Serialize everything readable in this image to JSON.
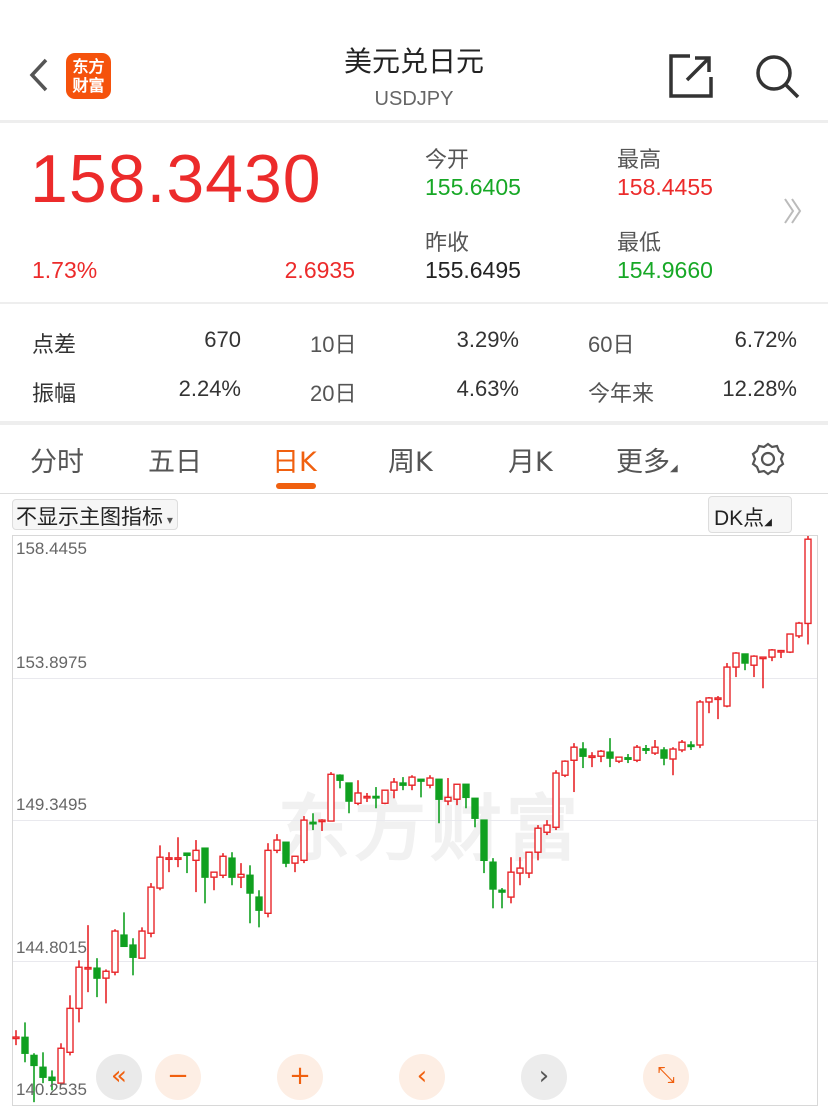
{
  "header": {
    "title": "美元兑日元",
    "subtitle": "USDJPY",
    "logo_text": "东方财富",
    "icons": [
      "back-icon",
      "share-icon",
      "search-icon"
    ]
  },
  "quote": {
    "price": "158.3430",
    "change_pct": "1.73%",
    "change": "2.6935",
    "open_label": "今开",
    "open": "155.6405",
    "high_label": "最高",
    "high": "158.4455",
    "prev_close_label": "昨收",
    "prev_close": "155.6495",
    "low_label": "最低",
    "low": "154.9660"
  },
  "stats": [
    {
      "label": "点差",
      "value": "670"
    },
    {
      "label": "10日",
      "value": "3.29%"
    },
    {
      "label": "60日",
      "value": "6.72%"
    },
    {
      "label": "振幅",
      "value": "2.24%"
    },
    {
      "label": "20日",
      "value": "4.63%"
    },
    {
      "label": "今年来",
      "value": "12.28%"
    }
  ],
  "tabs": [
    {
      "label": "分时"
    },
    {
      "label": "五日"
    },
    {
      "label": "日K",
      "active": true
    },
    {
      "label": "周K"
    },
    {
      "label": "月K"
    },
    {
      "label": "更多"
    }
  ],
  "toolbar": {
    "indicator_select": "不显示主图指标",
    "dk_button": "DK点"
  },
  "colors": {
    "up": "#e8262a",
    "down": "#10a020",
    "accent": "#f0600f"
  },
  "chart_data": {
    "type": "candlestick",
    "ylim": [
      140.2535,
      158.4455
    ],
    "y_ticks": [
      "158.4455",
      "153.8975",
      "149.3495",
      "144.8015",
      "140.2535"
    ],
    "grid": true,
    "watermark": "东方财富",
    "ohlc_fields": [
      "open",
      "high",
      "low",
      "close"
    ],
    "ohlc": [
      [
        142.36,
        142.59,
        142.11,
        142.37
      ],
      [
        142.36,
        142.84,
        141.56,
        141.85
      ],
      [
        141.78,
        141.85,
        140.28,
        141.46
      ],
      [
        141.4,
        141.88,
        140.89,
        141.08
      ],
      [
        141.08,
        141.3,
        140.66,
        140.98
      ],
      [
        140.89,
        142.17,
        140.82,
        142.01
      ],
      [
        141.88,
        143.71,
        141.78,
        143.29
      ],
      [
        143.29,
        144.83,
        142.84,
        144.61
      ],
      [
        144.58,
        145.96,
        143.81,
        144.6
      ],
      [
        144.58,
        144.9,
        143.65,
        144.26
      ],
      [
        144.26,
        144.54,
        143.45,
        144.48
      ],
      [
        144.45,
        145.83,
        144.35,
        145.77
      ],
      [
        145.64,
        146.37,
        145.28,
        145.28
      ],
      [
        145.32,
        145.54,
        144.35,
        144.93
      ],
      [
        144.9,
        145.89,
        144.9,
        145.77
      ],
      [
        145.7,
        147.31,
        145.57,
        147.18
      ],
      [
        147.15,
        148.52,
        147.08,
        148.14
      ],
      [
        148.1,
        148.3,
        147.66,
        148.12
      ],
      [
        148.1,
        148.78,
        147.82,
        148.12
      ],
      [
        148.27,
        148.27,
        147.63,
        148.2
      ],
      [
        148.04,
        148.69,
        147.02,
        148.36
      ],
      [
        148.43,
        148.43,
        146.66,
        147.5
      ],
      [
        147.5,
        147.66,
        147.08,
        147.66
      ],
      [
        147.56,
        148.27,
        147.47,
        148.17
      ],
      [
        148.11,
        148.3,
        147.24,
        147.5
      ],
      [
        147.5,
        147.95,
        147.15,
        147.59
      ],
      [
        147.56,
        147.88,
        146.02,
        146.99
      ],
      [
        146.86,
        147.08,
        145.89,
        146.44
      ],
      [
        146.34,
        148.59,
        146.21,
        148.36
      ],
      [
        148.36,
        148.88,
        148.27,
        148.69
      ],
      [
        148.62,
        148.62,
        147.82,
        147.95
      ],
      [
        147.95,
        148.17,
        147.66,
        148.17
      ],
      [
        148.04,
        149.46,
        147.95,
        149.33
      ],
      [
        149.26,
        149.55,
        149.01,
        149.23
      ],
      [
        149.3,
        149.36,
        148.98,
        149.33
      ],
      [
        149.3,
        150.87,
        149.3,
        150.8
      ],
      [
        150.77,
        150.8,
        150.35,
        150.61
      ],
      [
        150.52,
        150.52,
        149.55,
        149.94
      ],
      [
        149.87,
        150.61,
        149.81,
        150.2
      ],
      [
        150.06,
        150.2,
        149.91,
        150.09
      ],
      [
        150.09,
        150.39,
        149.71,
        150.06
      ],
      [
        149.87,
        150.29,
        149.84,
        150.29
      ],
      [
        150.29,
        150.68,
        150.03,
        150.55
      ],
      [
        150.52,
        150.71,
        150.29,
        150.45
      ],
      [
        150.45,
        150.77,
        150.29,
        150.71
      ],
      [
        150.64,
        150.64,
        150.06,
        150.58
      ],
      [
        150.45,
        150.77,
        150.35,
        150.68
      ],
      [
        150.64,
        150.64,
        149.23,
        150.0
      ],
      [
        149.94,
        150.68,
        149.81,
        150.06
      ],
      [
        150.0,
        150.48,
        149.81,
        150.48
      ],
      [
        150.48,
        150.48,
        149.71,
        150.06
      ],
      [
        150.03,
        150.03,
        149.1,
        149.39
      ],
      [
        149.33,
        149.33,
        147.63,
        148.04
      ],
      [
        147.98,
        148.11,
        146.5,
        147.12
      ],
      [
        147.08,
        147.15,
        146.5,
        147.02
      ],
      [
        146.86,
        148.14,
        146.66,
        147.66
      ],
      [
        147.63,
        148.14,
        147.24,
        147.79
      ],
      [
        147.63,
        148.3,
        147.47,
        148.3
      ],
      [
        148.3,
        149.17,
        148.04,
        149.07
      ],
      [
        148.94,
        149.33,
        148.85,
        149.17
      ],
      [
        149.1,
        150.93,
        149.01,
        150.84
      ],
      [
        150.77,
        151.25,
        150.71,
        151.22
      ],
      [
        151.25,
        151.8,
        150.23,
        151.67
      ],
      [
        151.61,
        151.83,
        151.0,
        151.38
      ],
      [
        151.36,
        151.51,
        151.03,
        151.39
      ],
      [
        151.38,
        151.58,
        151.19,
        151.54
      ],
      [
        151.51,
        151.96,
        151.03,
        151.32
      ],
      [
        151.22,
        151.35,
        151.16,
        151.35
      ],
      [
        151.33,
        151.45,
        151.16,
        151.3
      ],
      [
        151.25,
        151.74,
        151.19,
        151.67
      ],
      [
        151.62,
        151.74,
        151.45,
        151.58
      ],
      [
        151.48,
        151.9,
        151.42,
        151.67
      ],
      [
        151.58,
        151.67,
        151.09,
        151.32
      ],
      [
        151.29,
        151.67,
        150.77,
        151.61
      ],
      [
        151.58,
        151.9,
        151.51,
        151.83
      ],
      [
        151.74,
        151.86,
        151.58,
        151.71
      ],
      [
        151.74,
        153.18,
        151.64,
        153.12
      ],
      [
        153.12,
        153.28,
        152.76,
        153.25
      ],
      [
        153.23,
        153.31,
        152.57,
        153.25
      ],
      [
        152.99,
        154.37,
        152.95,
        154.24
      ],
      [
        154.24,
        154.72,
        153.92,
        154.69
      ],
      [
        154.66,
        154.66,
        154.14,
        154.37
      ],
      [
        154.3,
        154.62,
        153.92,
        154.59
      ],
      [
        154.54,
        154.56,
        153.56,
        154.56
      ],
      [
        154.56,
        154.82,
        154.43,
        154.79
      ],
      [
        154.75,
        154.79,
        154.53,
        154.77
      ],
      [
        154.72,
        155.3,
        154.69,
        155.3
      ],
      [
        155.24,
        155.69,
        155.17,
        155.65
      ],
      [
        155.6405,
        158.4455,
        154.966,
        158.343
      ]
    ]
  },
  "chart_controls": [
    "rewind-icon",
    "zoom-out-icon",
    "zoom-in-icon",
    "prev-icon",
    "next-icon",
    "fullscreen-icon"
  ]
}
